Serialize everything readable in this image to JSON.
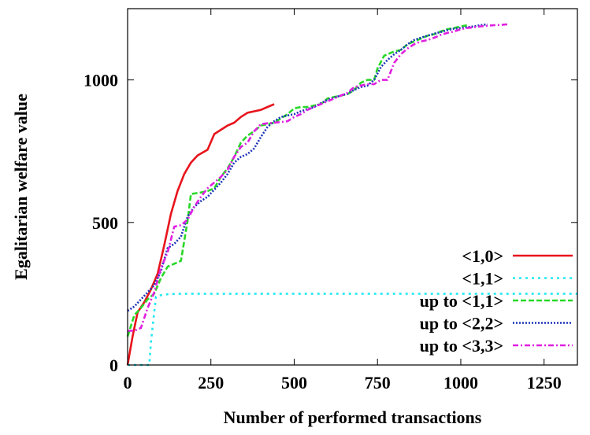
{
  "chart_data": {
    "type": "line",
    "title": "",
    "xlabel": "Number of performed transactions",
    "ylabel": "Egalitarian welfare value",
    "xlim": [
      0,
      1350
    ],
    "ylim": [
      0,
      1250
    ],
    "x_ticks": [
      {
        "value": 0,
        "label": "0"
      },
      {
        "value": 250,
        "label": "250"
      },
      {
        "value": 500,
        "label": "500"
      },
      {
        "value": 750,
        "label": "750"
      },
      {
        "value": 1000,
        "label": "1000"
      },
      {
        "value": 1250,
        "label": "1250"
      }
    ],
    "y_ticks": [
      {
        "value": 0,
        "label": "0"
      },
      {
        "value": 500,
        "label": "500"
      },
      {
        "value": 1000,
        "label": "1000"
      }
    ],
    "grid": false,
    "legend_position": "bottom-right",
    "series": [
      {
        "name": "<1,0>",
        "color": "#e8141c",
        "dash": "",
        "width": 2.6,
        "points": [
          [
            0,
            0
          ],
          [
            15,
            100
          ],
          [
            30,
            185
          ],
          [
            50,
            220
          ],
          [
            70,
            265
          ],
          [
            90,
            320
          ],
          [
            110,
            420
          ],
          [
            130,
            530
          ],
          [
            150,
            610
          ],
          [
            170,
            670
          ],
          [
            190,
            710
          ],
          [
            210,
            735
          ],
          [
            240,
            755
          ],
          [
            260,
            810
          ],
          [
            280,
            825
          ],
          [
            300,
            840
          ],
          [
            320,
            850
          ],
          [
            340,
            870
          ],
          [
            360,
            885
          ],
          [
            380,
            890
          ],
          [
            400,
            895
          ],
          [
            420,
            905
          ],
          [
            440,
            915
          ]
        ]
      },
      {
        "name": "<1,1>",
        "color": "#22e8f0",
        "dash": "3,5",
        "width": 2.6,
        "points": [
          [
            0,
            0
          ],
          [
            65,
            0
          ],
          [
            70,
            80
          ],
          [
            85,
            240
          ],
          [
            100,
            245
          ],
          [
            120,
            248
          ],
          [
            160,
            250
          ],
          [
            1350,
            250
          ]
        ]
      },
      {
        "name": "up to <1,1>",
        "color": "#28d828",
        "dash": "7,3",
        "width": 2.6,
        "points": [
          [
            0,
            100
          ],
          [
            20,
            175
          ],
          [
            40,
            200
          ],
          [
            60,
            230
          ],
          [
            80,
            250
          ],
          [
            100,
            305
          ],
          [
            120,
            345
          ],
          [
            140,
            355
          ],
          [
            160,
            365
          ],
          [
            180,
            505
          ],
          [
            190,
            600
          ],
          [
            220,
            605
          ],
          [
            240,
            610
          ],
          [
            260,
            620
          ],
          [
            280,
            660
          ],
          [
            300,
            690
          ],
          [
            320,
            730
          ],
          [
            340,
            780
          ],
          [
            360,
            805
          ],
          [
            380,
            820
          ],
          [
            400,
            840
          ],
          [
            420,
            845
          ],
          [
            440,
            850
          ],
          [
            460,
            865
          ],
          [
            480,
            880
          ],
          [
            500,
            900
          ],
          [
            520,
            905
          ],
          [
            540,
            905
          ],
          [
            560,
            910
          ],
          [
            580,
            915
          ],
          [
            600,
            935
          ],
          [
            620,
            940
          ],
          [
            640,
            945
          ],
          [
            660,
            950
          ],
          [
            680,
            965
          ],
          [
            700,
            990
          ],
          [
            720,
            1000
          ],
          [
            740,
            1000
          ],
          [
            750,
            1040
          ],
          [
            770,
            1085
          ],
          [
            790,
            1095
          ],
          [
            800,
            1100
          ],
          [
            820,
            1105
          ],
          [
            840,
            1125
          ],
          [
            860,
            1135
          ],
          [
            880,
            1145
          ],
          [
            900,
            1155
          ],
          [
            920,
            1160
          ],
          [
            940,
            1170
          ],
          [
            960,
            1178
          ],
          [
            980,
            1182
          ],
          [
            1000,
            1188
          ],
          [
            1020,
            1192
          ]
        ]
      },
      {
        "name": "up to <2,2>",
        "color": "#1c34b8",
        "dash": "2,2",
        "width": 2.6,
        "points": [
          [
            0,
            190
          ],
          [
            20,
            205
          ],
          [
            40,
            230
          ],
          [
            60,
            255
          ],
          [
            80,
            280
          ],
          [
            100,
            330
          ],
          [
            120,
            410
          ],
          [
            140,
            425
          ],
          [
            160,
            450
          ],
          [
            180,
            520
          ],
          [
            200,
            555
          ],
          [
            220,
            575
          ],
          [
            240,
            590
          ],
          [
            260,
            615
          ],
          [
            280,
            640
          ],
          [
            300,
            670
          ],
          [
            320,
            710
          ],
          [
            340,
            730
          ],
          [
            360,
            740
          ],
          [
            380,
            760
          ],
          [
            400,
            800
          ],
          [
            420,
            835
          ],
          [
            440,
            855
          ],
          [
            460,
            870
          ],
          [
            480,
            875
          ],
          [
            500,
            880
          ],
          [
            520,
            890
          ],
          [
            540,
            898
          ],
          [
            560,
            905
          ],
          [
            580,
            918
          ],
          [
            600,
            930
          ],
          [
            620,
            938
          ],
          [
            640,
            945
          ],
          [
            660,
            952
          ],
          [
            680,
            965
          ],
          [
            700,
            975
          ],
          [
            720,
            980
          ],
          [
            740,
            1000
          ],
          [
            760,
            1045
          ],
          [
            780,
            1070
          ],
          [
            800,
            1090
          ],
          [
            820,
            1105
          ],
          [
            840,
            1125
          ],
          [
            860,
            1140
          ],
          [
            880,
            1148
          ],
          [
            900,
            1155
          ],
          [
            920,
            1162
          ],
          [
            940,
            1168
          ],
          [
            960,
            1175
          ],
          [
            980,
            1180
          ],
          [
            1000,
            1182
          ],
          [
            1020,
            1185
          ],
          [
            1040,
            1188
          ],
          [
            1060,
            1192
          ],
          [
            1080,
            1195
          ]
        ]
      },
      {
        "name": "up to <3,3>",
        "color": "#e020e0",
        "dash": "7,3,2,3",
        "width": 2.6,
        "points": [
          [
            0,
            120
          ],
          [
            20,
            120
          ],
          [
            40,
            130
          ],
          [
            60,
            200
          ],
          [
            80,
            255
          ],
          [
            100,
            340
          ],
          [
            120,
            395
          ],
          [
            140,
            485
          ],
          [
            160,
            490
          ],
          [
            180,
            510
          ],
          [
            200,
            555
          ],
          [
            220,
            590
          ],
          [
            240,
            620
          ],
          [
            260,
            640
          ],
          [
            280,
            660
          ],
          [
            300,
            685
          ],
          [
            320,
            730
          ],
          [
            340,
            765
          ],
          [
            360,
            780
          ],
          [
            380,
            820
          ],
          [
            400,
            845
          ],
          [
            420,
            848
          ],
          [
            440,
            850
          ],
          [
            460,
            852
          ],
          [
            480,
            855
          ],
          [
            500,
            870
          ],
          [
            520,
            880
          ],
          [
            540,
            895
          ],
          [
            560,
            905
          ],
          [
            580,
            915
          ],
          [
            600,
            925
          ],
          [
            620,
            935
          ],
          [
            640,
            945
          ],
          [
            660,
            955
          ],
          [
            680,
            975
          ],
          [
            700,
            980
          ],
          [
            720,
            985
          ],
          [
            740,
            985
          ],
          [
            760,
            1000
          ],
          [
            780,
            1000
          ],
          [
            800,
            1060
          ],
          [
            820,
            1090
          ],
          [
            840,
            1110
          ],
          [
            860,
            1125
          ],
          [
            880,
            1135
          ],
          [
            900,
            1140
          ],
          [
            920,
            1148
          ],
          [
            940,
            1158
          ],
          [
            960,
            1165
          ],
          [
            980,
            1170
          ],
          [
            1000,
            1178
          ],
          [
            1020,
            1182
          ],
          [
            1040,
            1185
          ],
          [
            1060,
            1188
          ],
          [
            1080,
            1190
          ],
          [
            1100,
            1192
          ],
          [
            1120,
            1193
          ],
          [
            1140,
            1195
          ]
        ]
      }
    ]
  }
}
